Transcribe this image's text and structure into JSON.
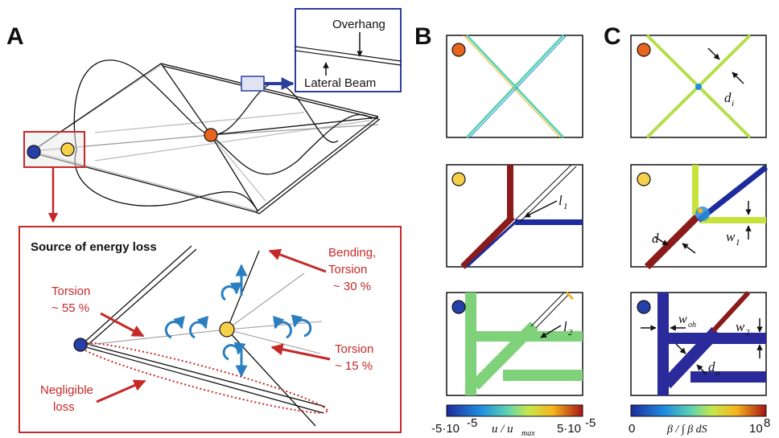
{
  "panels": {
    "a": "A",
    "b": "B",
    "c": "C"
  },
  "inset": {
    "overhang": "Overhang",
    "lateral_beam": "Lateral Beam"
  },
  "energy_box": {
    "title": "Source of energy loss",
    "torsion_55_l1": "Torsion",
    "torsion_55_l2": "~ 55 %",
    "bending_l1": "Bending,",
    "bending_l2": "Torsion",
    "bending_l3": "~ 30 %",
    "torsion_15_l1": "Torsion",
    "torsion_15_l2": "~ 15 %",
    "negligible_l1": "Negligible",
    "negligible_l2": "loss"
  },
  "annotations": {
    "l1": "l",
    "l1_sub": "1",
    "l2": "l",
    "l2_sub": "2",
    "di": "d",
    "di_sub": "i",
    "d": "d",
    "w1": "w",
    "w1_sub": "1",
    "woh": "w",
    "woh_sub": "oh",
    "w2": "w",
    "w2_sub": "2",
    "do": "d",
    "do_sub": "o"
  },
  "colorbar_b": {
    "min": "-5·10",
    "min_exp": "-5",
    "max": "5·10",
    "max_exp": "-5",
    "label": "u / u",
    "label_sub": "max"
  },
  "colorbar_c": {
    "min": "0",
    "max": "10",
    "max_exp": "8",
    "label": "β / ∫ β dS"
  },
  "colors": {
    "red": "#c62828",
    "blue_frame": "#2c3e9c",
    "marker_orange": "#e8651e",
    "marker_yellow": "#f7d04b",
    "marker_blue": "#2540a8",
    "arrow_blue": "#2a7fc1"
  }
}
